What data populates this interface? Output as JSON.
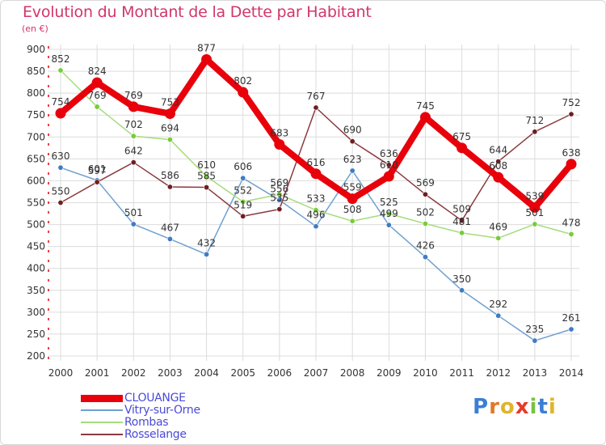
{
  "header": {
    "title": "Evolution du Montant de la Dette par Habitant",
    "subtitle": "(en €)"
  },
  "logo": {
    "text": "Proxiti",
    "letter_colors": [
      "#3a7fd5",
      "#e0792b",
      "#e0b42b",
      "#e63b2b",
      "#7ac143",
      "#3a7fd5",
      "#e0b42b"
    ]
  },
  "chart_data": {
    "type": "line",
    "title": "Evolution du Montant de la Dette par Habitant",
    "subtitle": "(en €)",
    "xlabel": "",
    "ylabel": "",
    "x": [
      "2000",
      "2001",
      "2002",
      "2003",
      "2004",
      "2005",
      "2006",
      "2007",
      "2008",
      "2009",
      "2010",
      "2011",
      "2012",
      "2013",
      "2014"
    ],
    "ylim": [
      200,
      900
    ],
    "yticks": [
      200,
      250,
      300,
      350,
      400,
      450,
      500,
      550,
      600,
      650,
      700,
      750,
      800,
      850,
      900
    ],
    "grid": true,
    "legend_position": "bottom-left",
    "series": [
      {
        "name": "CLOUANGE",
        "color": "#e8000b",
        "marker": "#e8000b",
        "emphasis": true,
        "values": [
          754,
          824,
          769,
          753,
          877,
          802,
          683,
          616,
          559,
          610,
          745,
          675,
          608,
          539,
          638
        ]
      },
      {
        "name": "Vitry-sur-Orne",
        "color": "#6fa0d0",
        "marker": "#3e7cc4",
        "values": [
          630,
          601,
          501,
          467,
          432,
          606,
          556,
          496,
          623,
          499,
          426,
          350,
          292,
          235,
          261
        ]
      },
      {
        "name": "Rombas",
        "color": "#a6dc7c",
        "marker": "#77cc3c",
        "values": [
          852,
          769,
          702,
          694,
          610,
          552,
          569,
          533,
          508,
          525,
          502,
          481,
          469,
          501,
          478
        ]
      },
      {
        "name": "Rosselange",
        "color": "#8a3a3f",
        "marker": "#6e1e24",
        "values": [
          550,
          597,
          642,
          586,
          585,
          519,
          535,
          767,
          690,
          636,
          569,
          509,
          644,
          712,
          752
        ]
      }
    ],
    "data_labels": [
      [
        "754",
        "824",
        "769",
        "753",
        "877",
        "802",
        "683",
        "616",
        "559",
        "610",
        "745",
        "675",
        "608",
        "539",
        "638"
      ],
      [
        "630",
        "601",
        "501",
        "467",
        "432",
        "606",
        "556",
        "496",
        "623",
        "499",
        "426",
        "350",
        "292",
        "235",
        "261"
      ],
      [
        "852",
        "769",
        "702",
        "694",
        "610",
        "552",
        "569",
        "533",
        "508",
        "525",
        "502",
        "481",
        "469",
        "501",
        "478"
      ],
      [
        "550",
        "597",
        "642",
        "586",
        "585",
        "519",
        "535",
        "767",
        "690",
        "636",
        "569",
        "509",
        "644",
        "712",
        "752"
      ]
    ]
  }
}
